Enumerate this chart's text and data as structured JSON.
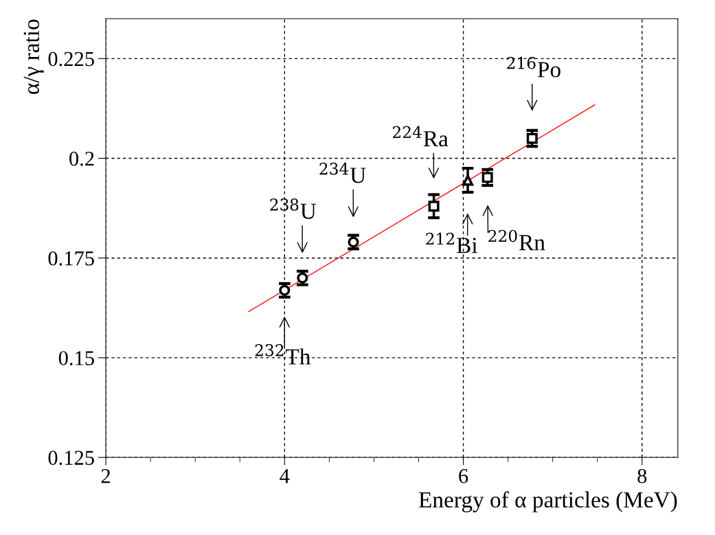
{
  "chart_data": {
    "type": "scatter",
    "xlabel": "Energy of α particles (MeV)",
    "ylabel": "α/γ ratio",
    "xlim": [
      2,
      8.4
    ],
    "ylim": [
      0.125,
      0.235
    ],
    "xticks": [
      2,
      4,
      6,
      8
    ],
    "yticks": [
      0.125,
      0.15,
      0.175,
      0.2,
      0.225
    ],
    "grid": true,
    "series": [
      {
        "marker": "circle",
        "color": "#000000",
        "x": [
          4.0,
          4.2,
          4.77
        ],
        "values": [
          0.1669,
          0.17,
          0.179
        ],
        "errors": [
          0.0017,
          0.0017,
          0.0017
        ]
      },
      {
        "marker": "square",
        "color": "#000000",
        "x": [
          5.67,
          6.27,
          6.77
        ],
        "values": [
          0.188,
          0.1952,
          0.205
        ],
        "errors": [
          0.0029,
          0.002,
          0.002
        ]
      },
      {
        "marker": "triangle",
        "color": "#000000",
        "x": [
          6.05
        ],
        "values": [
          0.1945
        ],
        "errors": [
          0.003
        ]
      },
      {
        "type": "line",
        "marker": "none",
        "color": "#ff0000",
        "x": [
          3.6,
          7.47
        ],
        "values": [
          0.1616,
          0.2134
        ]
      }
    ],
    "annotations": [
      {
        "text": "$^{232}$Th",
        "x": 4.0,
        "y": 0.1669
      },
      {
        "text": "$^{238}$U",
        "x": 4.2,
        "y": 0.17
      },
      {
        "text": "$^{234}$U",
        "x": 4.77,
        "y": 0.179
      },
      {
        "text": "$^{224}$Ra",
        "x": 5.67,
        "y": 0.188
      },
      {
        "text": "$^{212}$Bi",
        "x": 6.05,
        "y": 0.1945
      },
      {
        "text": "$^{220}$Rn",
        "x": 6.27,
        "y": 0.1952
      },
      {
        "text": "$^{216}$Po",
        "x": 6.77,
        "y": 0.205
      }
    ]
  }
}
